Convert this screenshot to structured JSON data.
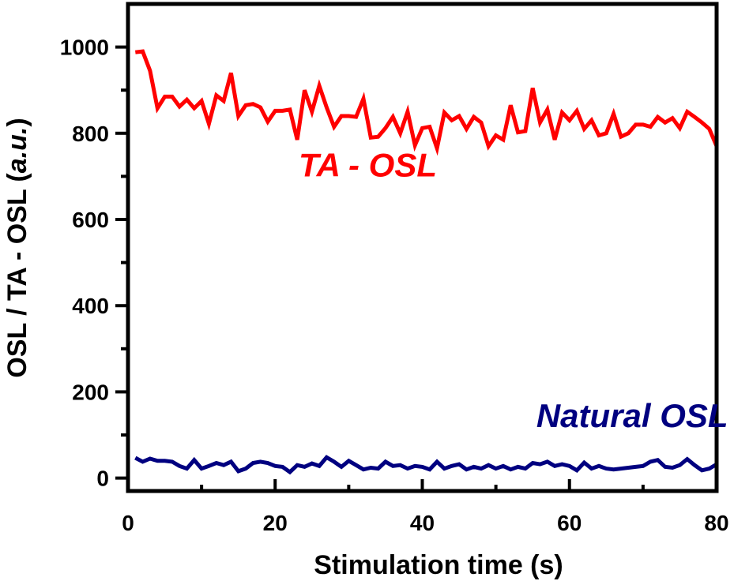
{
  "chart_data": {
    "type": "line",
    "title": "",
    "xlabel": "Stimulation time (s)",
    "ylabel_parts": [
      "OSL / TA - OSL (",
      "a.u.",
      ")"
    ],
    "xlim": [
      0,
      80
    ],
    "ylim": [
      -30,
      1100
    ],
    "x_ticks": [
      0,
      20,
      40,
      60,
      80
    ],
    "y_ticks": [
      0,
      200,
      400,
      600,
      800,
      1000
    ],
    "grid": false,
    "legend": "none",
    "x": [
      1,
      2,
      3,
      4,
      5,
      6,
      7,
      8,
      9,
      10,
      11,
      12,
      13,
      14,
      15,
      16,
      17,
      18,
      19,
      20,
      21,
      22,
      23,
      24,
      25,
      26,
      27,
      28,
      29,
      30,
      31,
      32,
      33,
      34,
      35,
      36,
      37,
      38,
      39,
      40,
      41,
      42,
      43,
      44,
      45,
      46,
      47,
      48,
      49,
      50,
      51,
      52,
      53,
      54,
      55,
      56,
      57,
      58,
      59,
      60,
      61,
      62,
      63,
      64,
      65,
      66,
      67,
      68,
      69,
      70,
      71,
      72,
      73,
      74,
      75,
      76,
      77,
      78,
      79,
      80
    ],
    "series": [
      {
        "name": "TA - OSL",
        "color": "#ff0000",
        "values": [
          988,
          990,
          945,
          858,
          885,
          885,
          862,
          878,
          858,
          875,
          822,
          888,
          875,
          940,
          840,
          865,
          868,
          860,
          827,
          852,
          852,
          855,
          785,
          900,
          850,
          910,
          860,
          815,
          840,
          840,
          838,
          880,
          790,
          792,
          812,
          838,
          800,
          850,
          772,
          812,
          815,
          765,
          848,
          830,
          840,
          810,
          838,
          825,
          770,
          795,
          785,
          865,
          802,
          805,
          905,
          825,
          855,
          785,
          848,
          830,
          852,
          810,
          830,
          795,
          800,
          845,
          792,
          800,
          820,
          820,
          815,
          838,
          825,
          835,
          812,
          850,
          838,
          825,
          810,
          770
        ]
      },
      {
        "name": "Natural OSL",
        "color": "#000080",
        "values": [
          47,
          38,
          45,
          40,
          40,
          38,
          28,
          22,
          42,
          22,
          28,
          35,
          30,
          38,
          16,
          22,
          35,
          38,
          35,
          28,
          26,
          14,
          30,
          26,
          34,
          28,
          48,
          38,
          26,
          40,
          30,
          20,
          24,
          22,
          38,
          28,
          30,
          22,
          28,
          26,
          20,
          38,
          22,
          28,
          32,
          20,
          26,
          22,
          30,
          22,
          28,
          20,
          26,
          22,
          35,
          32,
          38,
          28,
          32,
          28,
          18,
          36,
          22,
          28,
          22,
          20,
          22,
          24,
          26,
          28,
          38,
          42,
          26,
          24,
          30,
          44,
          30,
          18,
          22,
          32
        ]
      }
    ],
    "annotations": [
      {
        "text": "TA - OSL",
        "color": "#ff0000",
        "x": 23.2,
        "y": 700
      },
      {
        "text": "Natural OSL",
        "color": "#000080",
        "x": 55.5,
        "y": 118
      }
    ]
  }
}
